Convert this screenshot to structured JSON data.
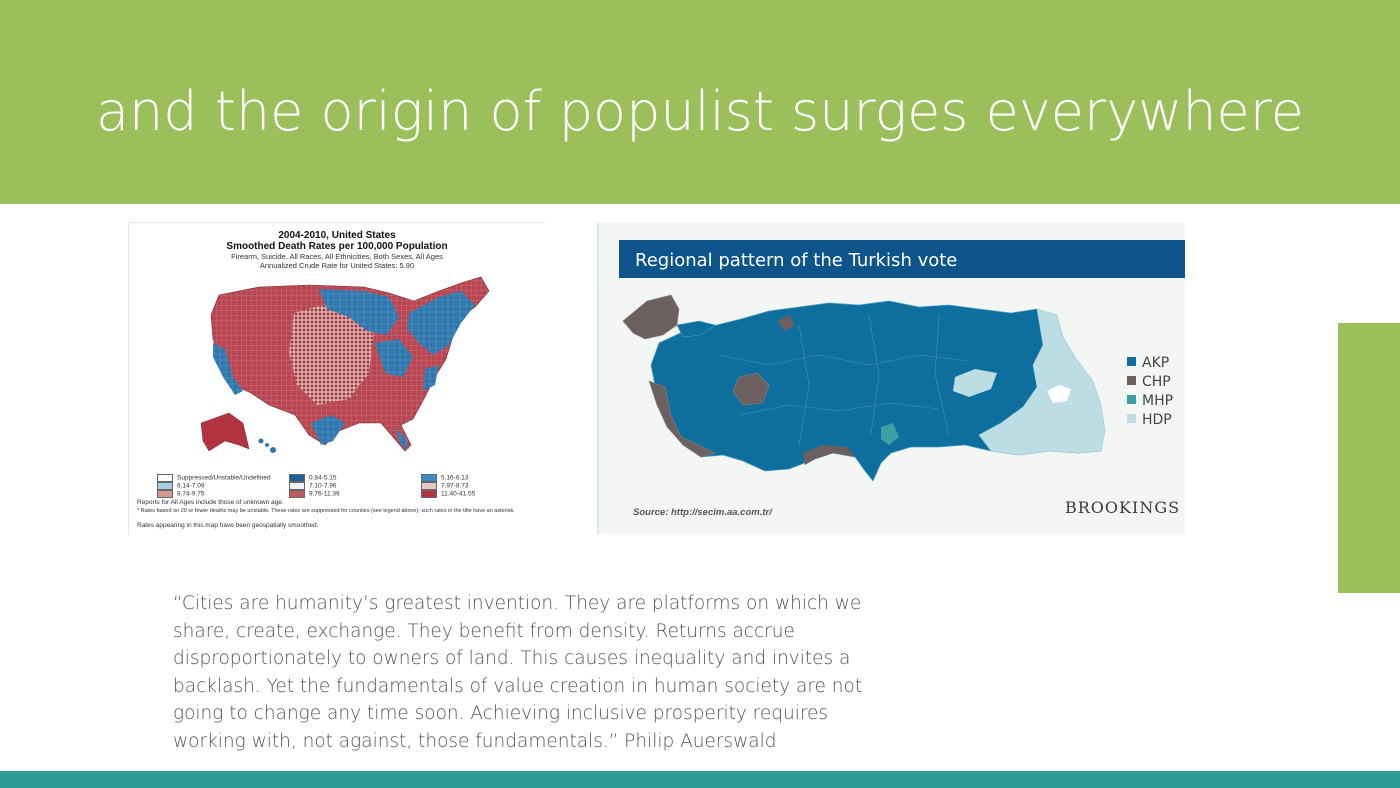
{
  "slide": {
    "title": "and the origin of populist surges everywhere",
    "colors": {
      "header": "#9bbf5b",
      "bottom_bar": "#2a9a96"
    }
  },
  "us_map": {
    "title_line1": "2004-2010, United States",
    "title_line2": "Smoothed  Death Rates per 100,000 Population",
    "subtitle_line1": "Firearm, Suicide, All Races, All Ethnicities, Both Sexes, All Ages",
    "subtitle_line2": "Annualized Crude Rate for United States: 5.90",
    "legend": [
      {
        "label": "Suppressed/Unstable/Undefined",
        "color": "#ffffff"
      },
      {
        "label": "0.84-5.15",
        "color": "#1d5f9a"
      },
      {
        "label": "5.16-6.13",
        "color": "#3a8dc2"
      },
      {
        "label": "6.14-7.09",
        "color": "#a9cfe4"
      },
      {
        "label": "7.10-7.96",
        "color": "#eef3f6"
      },
      {
        "label": "7.97-8.73",
        "color": "#e9c7c2"
      },
      {
        "label": "8.74-9.75",
        "color": "#d49b94"
      },
      {
        "label": "9.76-11.39",
        "color": "#c05a5e"
      },
      {
        "label": "11.40-41.55",
        "color": "#b23440"
      }
    ],
    "note1": "Reports for All Ages include those of unknown age.",
    "note2": "* Rates based on 20 or fewer deaths may be unstable.  These rates are suppressed for counties (see legend above); such rates in the title have an asterisk.",
    "note3": "Rates appearing in this map have been geospatially smoothed."
  },
  "turkey_map": {
    "title": "Regional pattern of the Turkish vote",
    "legend": [
      {
        "label": "AKP",
        "color": "#0e6e9e"
      },
      {
        "label": "CHP",
        "color": "#6b5f60"
      },
      {
        "label": "MHP",
        "color": "#3fa0a3"
      },
      {
        "label": "HDP",
        "color": "#bcdde3"
      }
    ],
    "source": "Source: http://secim.aa.com.tr/",
    "brand": "BROOKINGS"
  },
  "quote": {
    "lines": [
      "“Cities are humanity’s greatest invention. They are platforms on which we",
      "share, create, exchange. They benefit from density. Returns accrue",
      "disproportionately to owners of land. This causes inequality and invites a",
      "backlash. Yet the fundamentals of value creation in human society are not",
      "going to change any time soon. Achieving inclusive prosperity requires",
      "working with, not against, those fundamentals.” Philip Auerswald"
    ]
  }
}
